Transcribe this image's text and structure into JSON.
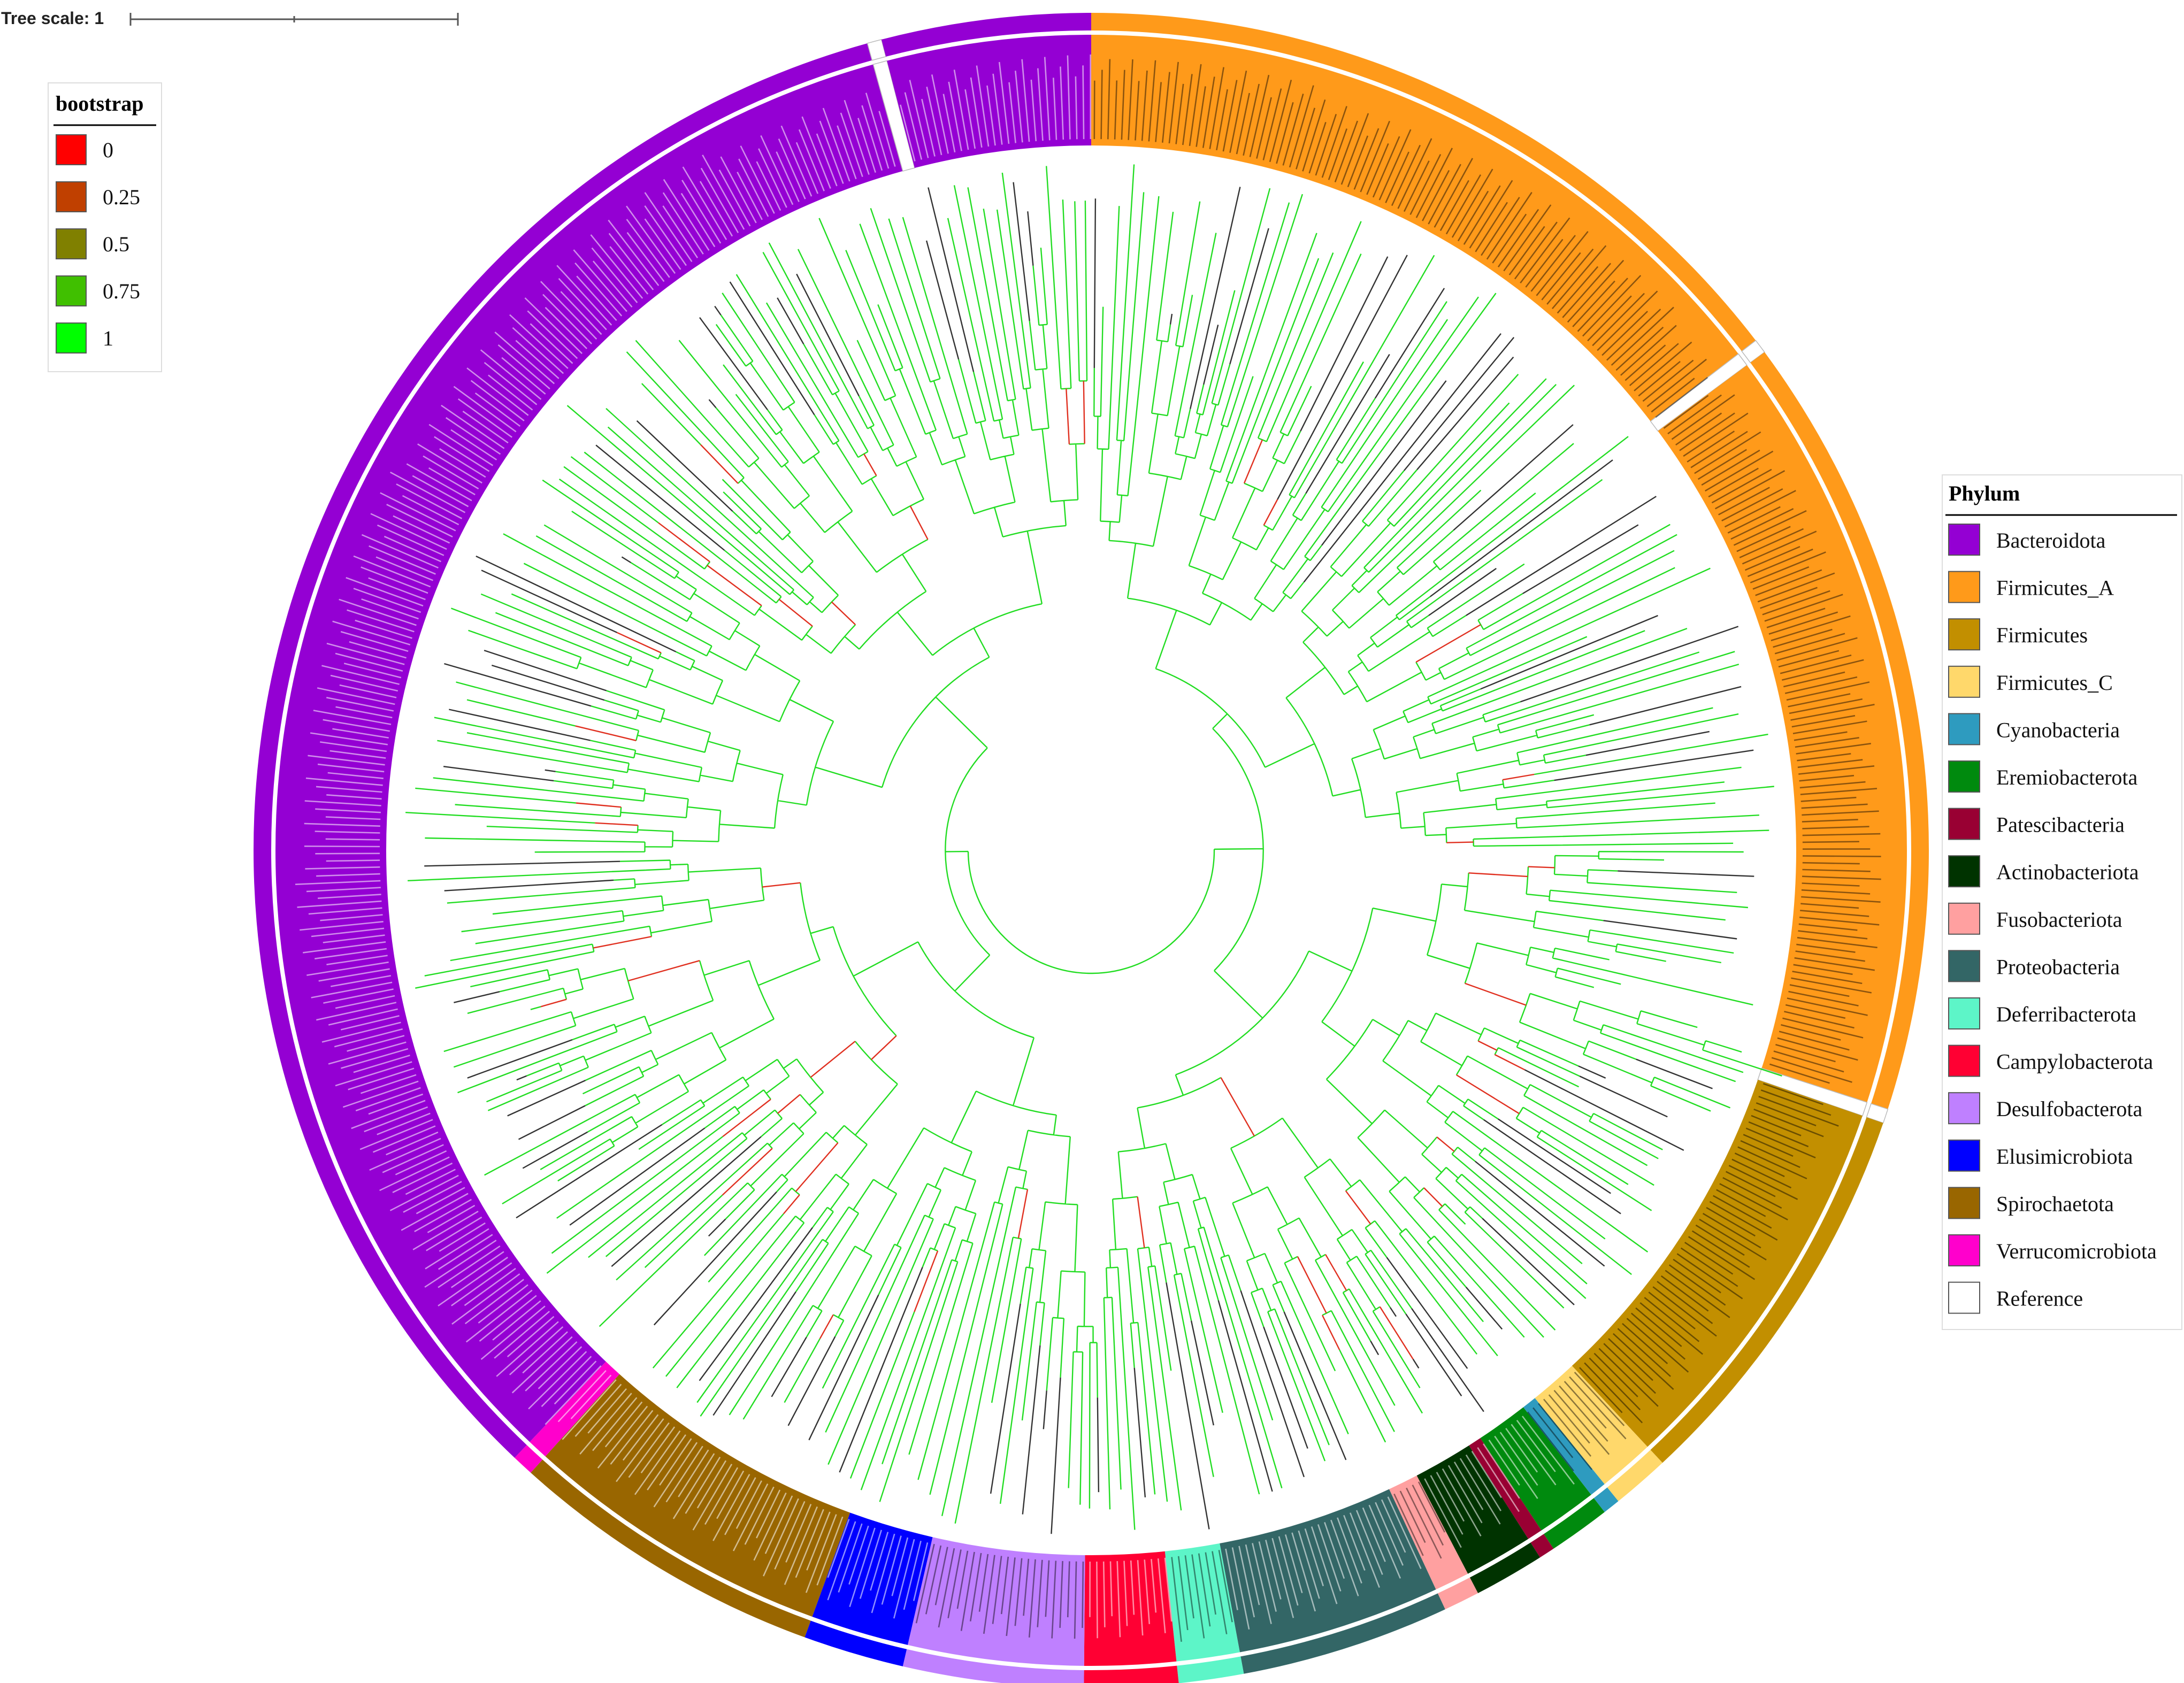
{
  "tree_scale": {
    "label": "Tree scale: 1"
  },
  "bootstrap_legend": {
    "title": "bootstrap",
    "items": [
      {
        "label": "0",
        "color": "#ff0000"
      },
      {
        "label": "0.25",
        "color": "#c04000"
      },
      {
        "label": "0.5",
        "color": "#808000"
      },
      {
        "label": "0.75",
        "color": "#40c000"
      },
      {
        "label": "1",
        "color": "#00ff00"
      }
    ]
  },
  "phylum_legend": {
    "title": "Phylum",
    "items": [
      {
        "label": "Bacteroidota",
        "color": "#9400d3"
      },
      {
        "label": "Firmicutes_A",
        "color": "#ff9a1a"
      },
      {
        "label": "Firmicutes",
        "color": "#c28f00"
      },
      {
        "label": "Firmicutes_C",
        "color": "#ffd86b"
      },
      {
        "label": "Cyanobacteria",
        "color": "#2e9bbf"
      },
      {
        "label": "Eremiobacterota",
        "color": "#008a0e"
      },
      {
        "label": "Patescibacteria",
        "color": "#990033"
      },
      {
        "label": "Actinobacteriota",
        "color": "#003300"
      },
      {
        "label": "Fusobacteriota",
        "color": "#ffa0a0"
      },
      {
        "label": "Proteobacteria",
        "color": "#336666"
      },
      {
        "label": "Deferribacterota",
        "color": "#5df5c8"
      },
      {
        "label": "Campylobacterota",
        "color": "#ff0033"
      },
      {
        "label": "Desulfobacterota",
        "color": "#bf80ff"
      },
      {
        "label": "Elusimicrobiota",
        "color": "#0000ff"
      },
      {
        "label": "Spirochaetota",
        "color": "#996600"
      },
      {
        "label": "Verrucomicrobiota",
        "color": "#ff00cc"
      },
      {
        "label": "Reference",
        "color": "#ffffff"
      }
    ]
  },
  "ring_segments": [
    {
      "phylum": "Firmicutes_A",
      "from": 0,
      "to": 52.5
    },
    {
      "phylum": "Reference",
      "from": 52.5,
      "to": 53.5
    },
    {
      "phylum": "Firmicutes_A",
      "from": 53.5,
      "to": 108
    },
    {
      "phylum": "Reference",
      "from": 108,
      "to": 109
    },
    {
      "phylum": "Firmicutes",
      "from": 109,
      "to": 137
    },
    {
      "phylum": "Firmicutes_C",
      "from": 137,
      "to": 141
    },
    {
      "phylum": "Cyanobacteria",
      "from": 141,
      "to": 142.2
    },
    {
      "phylum": "Eremiobacterota",
      "from": 142.2,
      "to": 146.5
    },
    {
      "phylum": "Patescibacteria",
      "from": 146.5,
      "to": 147.6
    },
    {
      "phylum": "Actinobacteriota",
      "from": 147.6,
      "to": 152.5
    },
    {
      "phylum": "Fusobacteriota",
      "from": 152.5,
      "to": 155
    },
    {
      "phylum": "Proteobacteria",
      "from": 155,
      "to": 169.5
    },
    {
      "phylum": "Deferribacterota",
      "from": 169.5,
      "to": 174
    },
    {
      "phylum": "Campylobacterota",
      "from": 174,
      "to": 180.5
    },
    {
      "phylum": "Desulfobacterota",
      "from": 180.5,
      "to": 193
    },
    {
      "phylum": "Elusimicrobiota",
      "from": 193,
      "to": 200
    },
    {
      "phylum": "Spirochaetota",
      "from": 200,
      "to": 222
    },
    {
      "phylum": "Verrucomicrobiota",
      "from": 222,
      "to": 223.5
    },
    {
      "phylum": "Bacteroidota",
      "from": 223.5,
      "to": 344.5
    },
    {
      "phylum": "Reference",
      "from": 344.5,
      "to": 345.5
    },
    {
      "phylum": "Bacteroidota",
      "from": 345.5,
      "to": 360
    }
  ]
}
